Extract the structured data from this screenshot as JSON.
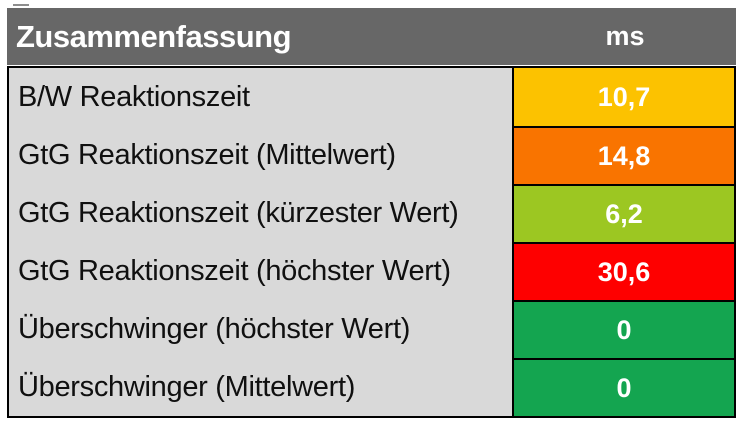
{
  "table": {
    "title": "Zusammenfassung",
    "unit_header": "ms",
    "rows": [
      {
        "label": "B/W Reaktionszeit",
        "value": "10,7",
        "color": "#fcc200"
      },
      {
        "label": "GtG Reaktionszeit (Mittelwert)",
        "value": "14,8",
        "color": "#f97400"
      },
      {
        "label": "GtG Reaktionszeit (kürzester Wert)",
        "value": "6,2",
        "color": "#9cc722"
      },
      {
        "label": "GtG Reaktionszeit (höchster Wert)",
        "value": "30,6",
        "color": "#fe0000"
      },
      {
        "label": "Überschwinger (höchster Wert)",
        "value": "0",
        "color": "#14a550"
      },
      {
        "label": "Überschwinger (Mittelwert)",
        "value": "0",
        "color": "#14a550"
      }
    ],
    "colors": {
      "header_bg": "#676767",
      "header_text": "#ffffff",
      "label_bg": "#d9d9d9",
      "label_text": "#101010",
      "value_text": "#ffffff",
      "border": "#000000"
    }
  },
  "chart_data": {
    "type": "table",
    "title": "Zusammenfassung",
    "columns": [
      "Zusammenfassung",
      "ms"
    ],
    "rows": [
      [
        "B/W Reaktionszeit",
        10.7
      ],
      [
        "GtG Reaktionszeit (Mittelwert)",
        14.8
      ],
      [
        "GtG Reaktionszeit (kürzester Wert)",
        6.2
      ],
      [
        "GtG Reaktionszeit (höchster Wert)",
        30.6
      ],
      [
        "Überschwinger (höchster Wert)",
        0
      ],
      [
        "Überschwinger (Mittelwert)",
        0
      ]
    ],
    "value_color_coding": {
      "10,7": "#fcc200",
      "14,8": "#f97400",
      "6,2": "#9cc722",
      "30,6": "#fe0000",
      "0": "#14a550"
    }
  }
}
